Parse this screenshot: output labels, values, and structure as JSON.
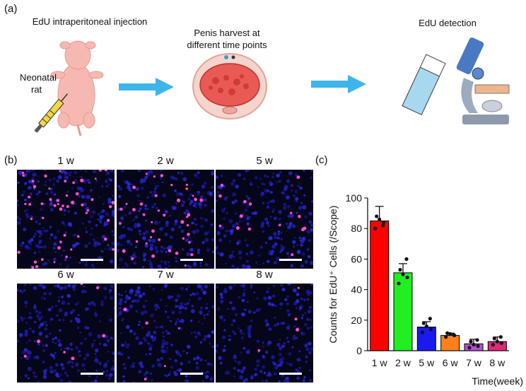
{
  "panel_a": {
    "label": "(a)",
    "step1_caption": "EdU intraperitoneal injection",
    "rat_label_line1": "Neonatal",
    "rat_label_line2": "rat",
    "step2_caption_line1": "Penis harvest at",
    "step2_caption_line2": "different time points",
    "step3_caption": "EdU detection",
    "arrow_color": "#3db5ea"
  },
  "panel_b": {
    "label": "(b)",
    "tiles": [
      {
        "label": "1 w",
        "positive_level": 1.0
      },
      {
        "label": "2 w",
        "positive_level": 0.8
      },
      {
        "label": "5 w",
        "positive_level": 0.3
      },
      {
        "label": "6 w",
        "positive_level": 0.15
      },
      {
        "label": "7 w",
        "positive_level": 0.1
      },
      {
        "label": "8 w",
        "positive_level": 0.08
      }
    ]
  },
  "panel_c": {
    "label": "(c)"
  },
  "chart_data": {
    "type": "bar",
    "categories": [
      "1 w",
      "2 w",
      "5 w",
      "6 w",
      "7 w",
      "8 w"
    ],
    "values": [
      85,
      51,
      15.5,
      10,
      4.5,
      6
    ],
    "errors": [
      9.5,
      6,
      3.5,
      1.5,
      3,
      3
    ],
    "points": [
      [
        80,
        84,
        86,
        88,
        82
      ],
      [
        44,
        48,
        50,
        53,
        60
      ],
      [
        12,
        14,
        16,
        18,
        21
      ],
      [
        9,
        10,
        11,
        11.5,
        10.5
      ],
      [
        2,
        3,
        4,
        6,
        7
      ],
      [
        4,
        5,
        6,
        8,
        9
      ]
    ],
    "colors": [
      "#ff0000",
      "#22ee22",
      "#1a1aee",
      "#ff7f1a",
      "#b84fd8",
      "#e0287a"
    ],
    "ylabel": "Counts for EdU⁺ Cells (/Scope)",
    "xlabel": "Time(week)",
    "ylim": [
      0,
      100
    ],
    "yticks": [
      0,
      20,
      40,
      60,
      80,
      100
    ],
    "grid": false
  }
}
